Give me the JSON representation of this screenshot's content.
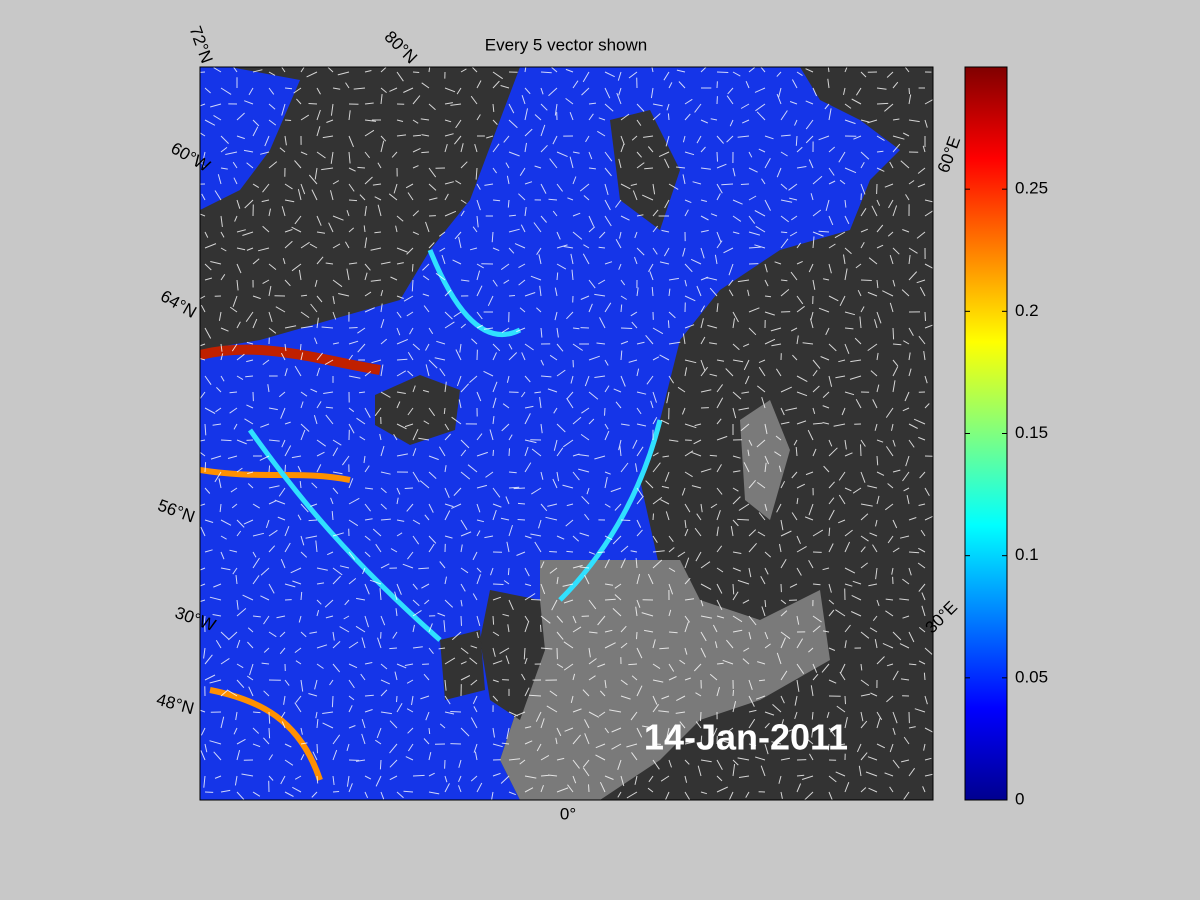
{
  "title": "Every 5 vector shown",
  "date": "14-Jan-2011",
  "graticule_labels": [
    "72°N",
    "80°N",
    "60°W",
    "64°N",
    "56°N",
    "30°W",
    "48°N",
    "0°",
    "30°E",
    "60°E"
  ],
  "colorbar": {
    "clim": [
      0,
      0.3
    ],
    "ticks": [
      0,
      0.05,
      0.1,
      0.15,
      0.2,
      0.25
    ]
  }
}
